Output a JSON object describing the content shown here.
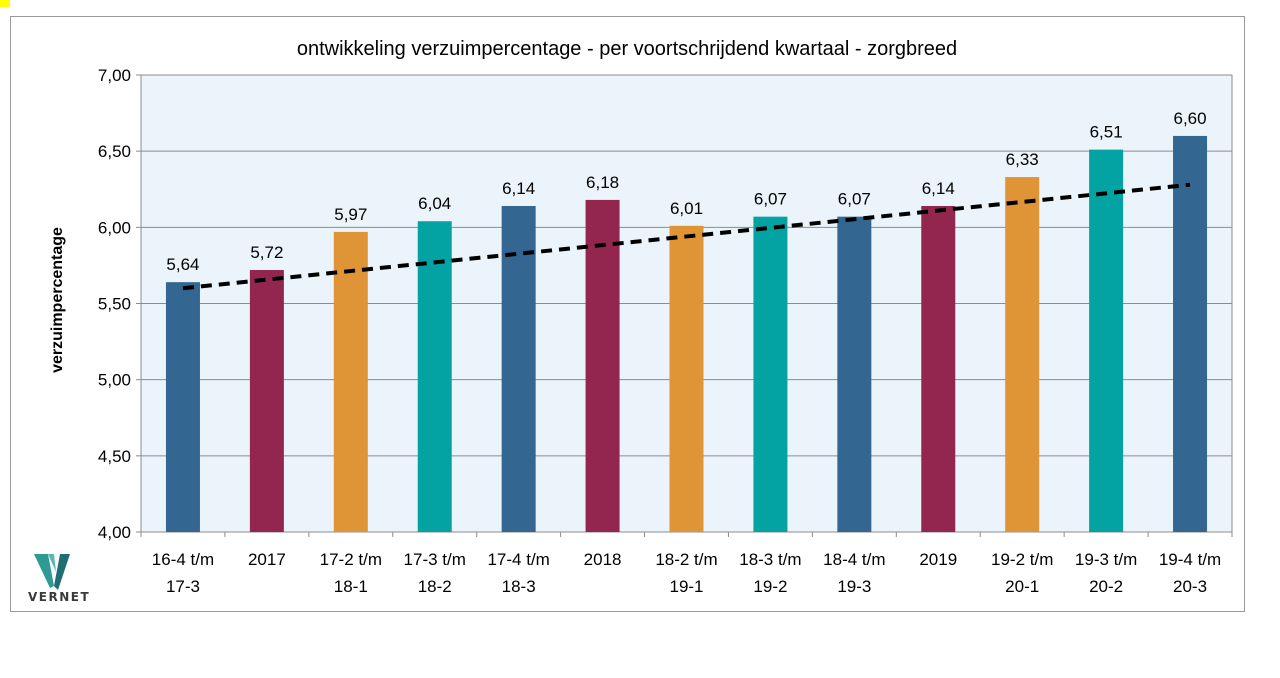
{
  "chart_data": {
    "type": "bar",
    "title": "ontwikkeling verzuimpercentage - per voortschrijdend kwartaal - zorgbreed",
    "xlabel": "",
    "ylabel": "verzuimpercentage",
    "ylim": [
      4.0,
      7.0
    ],
    "yticks": [
      "4,00",
      "4,50",
      "5,00",
      "5,50",
      "6,00",
      "6,50",
      "7,00"
    ],
    "ytick_values": [
      4.0,
      4.5,
      5.0,
      5.5,
      6.0,
      6.5,
      7.0
    ],
    "grid": true,
    "categories": [
      [
        "16-4 t/m",
        "17-3"
      ],
      [
        "2017"
      ],
      [
        "17-2 t/m",
        "18-1"
      ],
      [
        "17-3 t/m",
        "18-2"
      ],
      [
        "17-4 t/m",
        "18-3"
      ],
      [
        "2018"
      ],
      [
        "18-2 t/m",
        "19-1"
      ],
      [
        "18-3 t/m",
        "19-2"
      ],
      [
        "18-4 t/m",
        "19-3"
      ],
      [
        "2019"
      ],
      [
        "19-2 t/m",
        "20-1"
      ],
      [
        "19-3 t/m",
        "20-2"
      ],
      [
        "19-4 t/m",
        "20-3"
      ]
    ],
    "values": [
      5.64,
      5.72,
      5.97,
      6.04,
      6.14,
      6.18,
      6.01,
      6.07,
      6.07,
      6.14,
      6.33,
      6.51,
      6.6
    ],
    "value_labels": [
      "5,64",
      "5,72",
      "5,97",
      "6,04",
      "6,14",
      "6,18",
      "6,01",
      "6,07",
      "6,07",
      "6,14",
      "6,33",
      "6,51",
      "6,60"
    ],
    "bar_colors": [
      "#336791",
      "#93264f",
      "#df9536",
      "#04a3a3",
      "#336791",
      "#93264f",
      "#df9536",
      "#04a3a3",
      "#336791",
      "#93264f",
      "#df9536",
      "#04a3a3",
      "#336791"
    ],
    "trendline": {
      "style": "dashed",
      "color": "#000000",
      "start": 5.6,
      "end": 6.28
    },
    "plot_background": "#eaf4fa"
  },
  "logo": {
    "text": "VERNET",
    "colors": [
      "#2e9a92",
      "#1f6e72"
    ]
  }
}
